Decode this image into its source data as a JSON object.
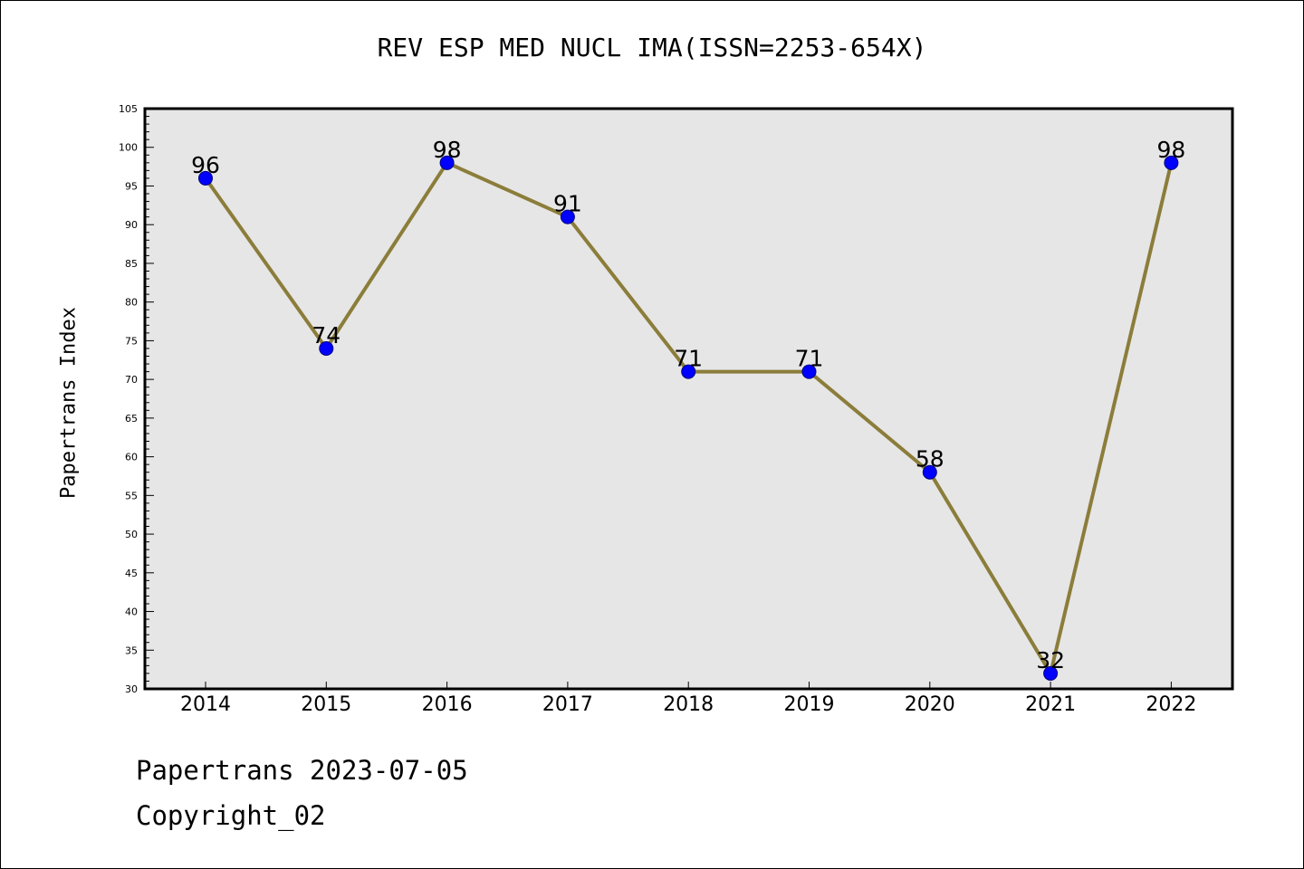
{
  "footer": {
    "line1": "Papertrans 2023-07-05",
    "line2": "Copyright_02"
  },
  "chart_data": {
    "type": "line",
    "title": "REV ESP MED NUCL IMA(ISSN=2253-654X)",
    "xlabel": "",
    "ylabel": "Papertrans Index",
    "categories": [
      "2014",
      "2015",
      "2016",
      "2017",
      "2018",
      "2019",
      "2020",
      "2021",
      "2022"
    ],
    "series": [
      {
        "values": [
          96,
          74,
          98,
          91,
          71,
          71,
          58,
          32,
          98
        ]
      }
    ],
    "ylim": [
      30,
      105
    ],
    "yticks": [
      30,
      35,
      40,
      45,
      50,
      55,
      60,
      65,
      70,
      75,
      80,
      85,
      90,
      95,
      100,
      105
    ],
    "grid": false,
    "legend": "none",
    "colors": {
      "plot_background": "#e6e6e6",
      "line": "#8b7d3a",
      "marker_fill": "#0000ff",
      "marker_edge": "#000080"
    }
  }
}
